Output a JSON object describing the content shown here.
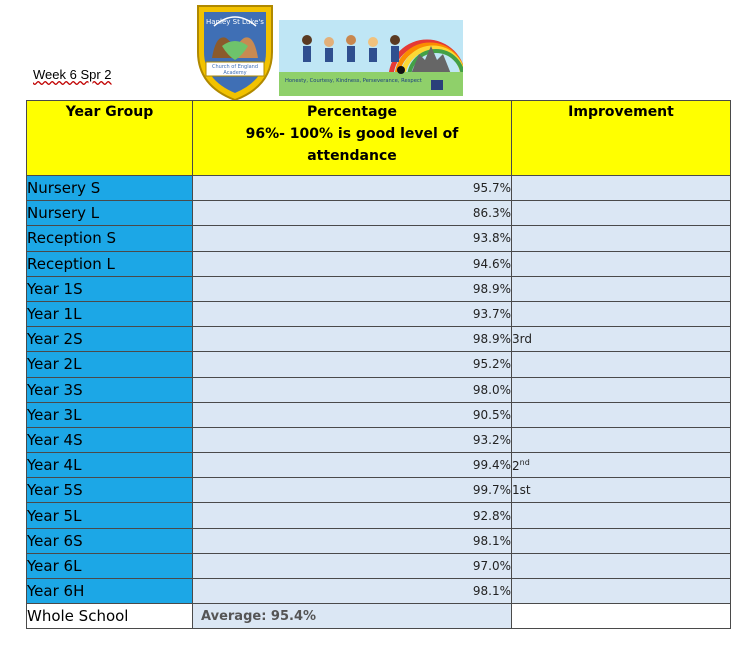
{
  "header": {
    "week_label": "Week 6 Spr 2",
    "crest_text_top": "Hanley St Luke's",
    "crest_text_band": "Church of England Academy",
    "banner_motto": "Honesty, Courtesy, Kindness, Perseverance, Respect"
  },
  "table": {
    "col1_header": "Year Group",
    "col2_header_line1": "Percentage",
    "col2_header_line2": "96%- 100% is good level of",
    "col2_header_line3": "attendance",
    "col3_header": "Improvement",
    "rows": [
      {
        "group": "Nursery S",
        "pct": "95.7%",
        "imp": ""
      },
      {
        "group": "Nursery L",
        "pct": "86.3%",
        "imp": ""
      },
      {
        "group": "Reception S",
        "pct": "93.8%",
        "imp": ""
      },
      {
        "group": "Reception L",
        "pct": "94.6%",
        "imp": ""
      },
      {
        "group": "Year 1S",
        "pct": "98.9%",
        "imp": ""
      },
      {
        "group": "Year 1L",
        "pct": "93.7%",
        "imp": ""
      },
      {
        "group": "Year 2S",
        "pct": "98.9%",
        "imp": "3rd"
      },
      {
        "group": "Year 2L",
        "pct": "95.2%",
        "imp": ""
      },
      {
        "group": "Year 3S",
        "pct": "98.0%",
        "imp": ""
      },
      {
        "group": "Year 3L",
        "pct": "90.5%",
        "imp": ""
      },
      {
        "group": "Year 4S",
        "pct": "93.2%",
        "imp": ""
      },
      {
        "group": "Year 4L",
        "pct": "99.4%",
        "imp": "2",
        "imp_sup": "nd"
      },
      {
        "group": "Year 5S",
        "pct": "99.7%",
        "imp": "1st"
      },
      {
        "group": "Year 5L",
        "pct": "92.8%",
        "imp": ""
      },
      {
        "group": "Year 6S",
        "pct": "98.1%",
        "imp": ""
      },
      {
        "group": "Year 6L",
        "pct": "97.0%",
        "imp": ""
      },
      {
        "group": "Year 6H",
        "pct": "98.1%",
        "imp": ""
      }
    ],
    "footer_group": "Whole School",
    "footer_average": "Average: 95.4%"
  },
  "colors": {
    "header_yellow": "#ffff00",
    "group_blue": "#1ca7e6",
    "cell_lightblue": "#dbe7f4"
  }
}
